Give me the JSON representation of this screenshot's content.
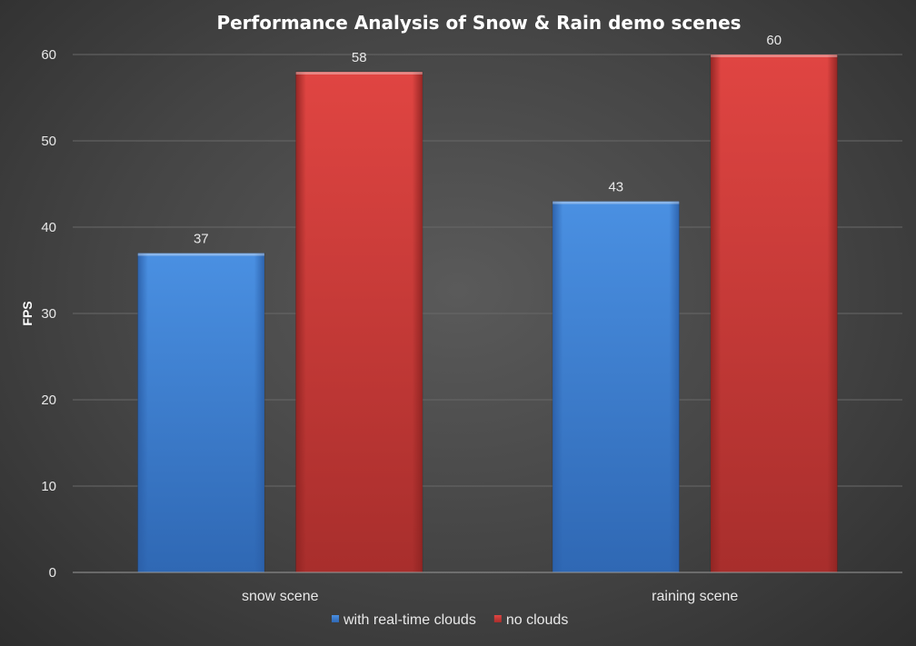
{
  "chart_data": {
    "type": "bar",
    "title": "Performance Analysis of Snow & Rain demo scenes",
    "xlabel": "",
    "ylabel": "FPS",
    "ylim": [
      0,
      60
    ],
    "yticks": [
      0,
      10,
      20,
      30,
      40,
      50,
      60
    ],
    "grid": true,
    "legend_position": "bottom",
    "categories": [
      "snow scene",
      "raining scene"
    ],
    "series": [
      {
        "name": "with real-time clouds",
        "values": [
          37,
          43
        ],
        "color": "#3f84d6"
      },
      {
        "name": "no clouds",
        "values": [
          58,
          60
        ],
        "color": "#d83c3a"
      }
    ],
    "data_labels": true
  }
}
